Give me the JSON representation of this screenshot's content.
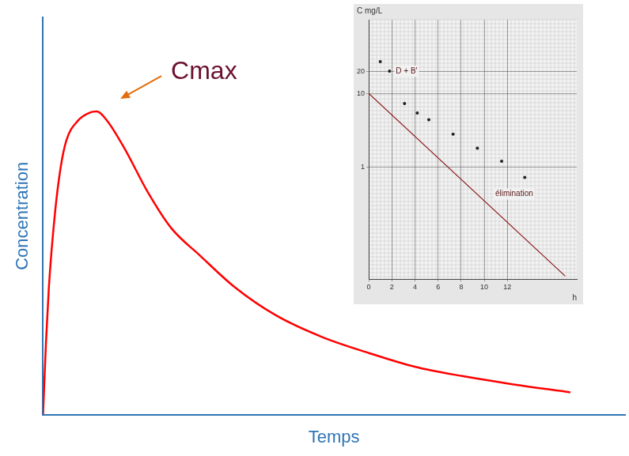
{
  "chart_data": [
    {
      "type": "line",
      "x_label": "Temps",
      "y_label": "Concentration",
      "xlim": [
        0,
        100
      ],
      "ylim": [
        0,
        100
      ],
      "tick_labels": false,
      "grid": false,
      "color": "#ff0000",
      "x": [
        0,
        0.5,
        1,
        2,
        3,
        4,
        6,
        8,
        9.2,
        11,
        14,
        18,
        22,
        27,
        33,
        40,
        48,
        56,
        64,
        72,
        80,
        90.6
      ],
      "values": [
        0,
        18,
        32,
        50,
        62,
        69,
        74,
        76,
        76.3,
        74,
        67,
        56,
        47,
        40,
        32,
        25,
        19.5,
        15.5,
        12,
        9.7,
        7.8,
        5.6
      ],
      "annotations": [
        {
          "text": "Cmax"
        }
      ]
    },
    {
      "type": "scatter",
      "log": "y",
      "x_label": "h",
      "y_label": "C mg/L",
      "xlim": [
        0,
        18
      ],
      "xticks": [
        0,
        2,
        4,
        6,
        8,
        10,
        12
      ],
      "ylim": [
        0.03,
        100
      ],
      "yticks": [
        1,
        10,
        20
      ],
      "grid": true,
      "series": [
        {
          "type": "scatter",
          "color": "#222222",
          "marker": "circle",
          "x": [
            1,
            1.8,
            3.1,
            4.2,
            5.2,
            7.3,
            9.4,
            11.5,
            13.5
          ],
          "values": [
            27,
            20,
            7.3,
            5.4,
            4.4,
            2.8,
            1.8,
            1.2,
            0.72
          ]
        },
        {
          "type": "line",
          "color": "#8b1a1a",
          "line_style": "solid",
          "x": [
            0,
            17
          ],
          "values": [
            10,
            0.033
          ]
        }
      ],
      "annotations": [
        {
          "text": "D + B'"
        },
        {
          "text": "élimination"
        }
      ]
    }
  ]
}
